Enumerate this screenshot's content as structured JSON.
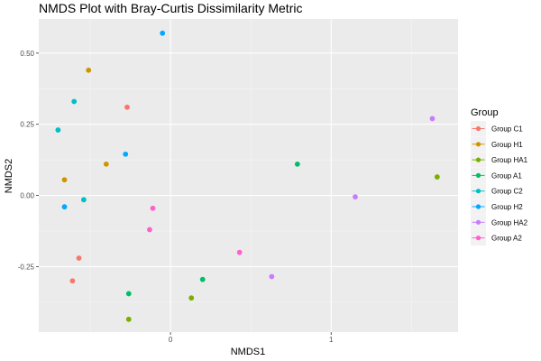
{
  "chart_data": {
    "type": "scatter",
    "title": "NMDS Plot with Bray-Curtis Dissimilarity Metric",
    "xlabel": "NMDS1",
    "ylabel": "NMDS2",
    "xlim": [
      -0.82,
      1.79
    ],
    "ylim": [
      -0.48,
      0.62
    ],
    "x_ticks": [
      {
        "value": 0,
        "label": "0"
      },
      {
        "value": 1,
        "label": "1"
      }
    ],
    "y_ticks": [
      {
        "value": 0.5,
        "label": "0.50"
      },
      {
        "value": 0.25,
        "label": "0.25"
      },
      {
        "value": 0.0,
        "label": "0.00"
      },
      {
        "value": -0.25,
        "label": "-0.25"
      }
    ],
    "grid": true,
    "legend": {
      "title": "Group",
      "position": "right"
    },
    "series": [
      {
        "name": "Group C1",
        "color": "#F8766D",
        "points": [
          [
            -0.27,
            0.31
          ],
          [
            -0.57,
            -0.22
          ],
          [
            -0.61,
            -0.3
          ]
        ]
      },
      {
        "name": "Group H1",
        "color": "#CD9600",
        "points": [
          [
            -0.51,
            0.44
          ],
          [
            -0.4,
            0.11
          ],
          [
            -0.66,
            0.055
          ]
        ]
      },
      {
        "name": "Group HA1",
        "color": "#7CAE00",
        "points": [
          [
            1.66,
            0.065
          ],
          [
            -0.26,
            -0.435
          ],
          [
            0.13,
            -0.36
          ]
        ]
      },
      {
        "name": "Group A1",
        "color": "#00BE67",
        "points": [
          [
            0.79,
            0.11
          ],
          [
            0.2,
            -0.295
          ],
          [
            -0.26,
            -0.345
          ]
        ]
      },
      {
        "name": "Group C2",
        "color": "#00BFC4",
        "points": [
          [
            -0.6,
            0.33
          ],
          [
            -0.7,
            0.23
          ],
          [
            -0.54,
            -0.015
          ]
        ]
      },
      {
        "name": "Group H2",
        "color": "#00A9FF",
        "points": [
          [
            -0.05,
            0.57
          ],
          [
            -0.28,
            0.145
          ],
          [
            -0.66,
            -0.04
          ]
        ]
      },
      {
        "name": "Group HA2",
        "color": "#C77CFF",
        "points": [
          [
            1.63,
            0.27
          ],
          [
            1.15,
            -0.005
          ],
          [
            0.63,
            -0.285
          ]
        ]
      },
      {
        "name": "Group A2",
        "color": "#FF61CC",
        "points": [
          [
            -0.11,
            -0.045
          ],
          [
            -0.13,
            -0.12
          ],
          [
            0.43,
            -0.2
          ]
        ]
      }
    ]
  }
}
